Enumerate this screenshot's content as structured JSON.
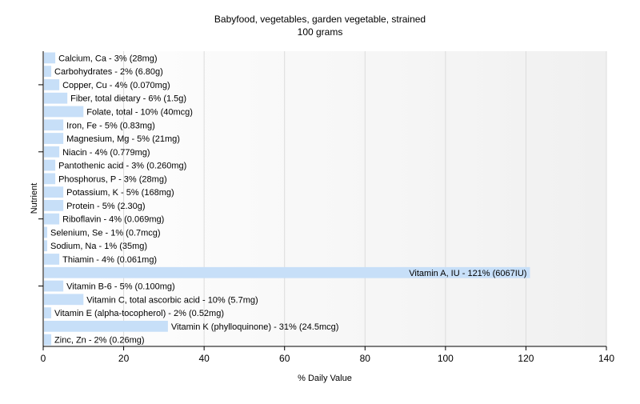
{
  "chart_data": {
    "type": "bar",
    "orientation": "horizontal",
    "title": "Babyfood, vegetables, garden vegetable, strained",
    "subtitle": "100 grams",
    "xlabel": "% Daily Value",
    "ylabel": "Nutrient",
    "xlim": [
      0,
      140
    ],
    "xticks": [
      0,
      20,
      40,
      60,
      80,
      100,
      120,
      140
    ],
    "grid": true,
    "bar_color": "#c7dff8",
    "categories": [
      "Calcium, Ca",
      "Carbohydrates",
      "Copper, Cu",
      "Fiber, total dietary",
      "Folate, total",
      "Iron, Fe",
      "Magnesium, Mg",
      "Niacin",
      "Pantothenic acid",
      "Phosphorus, P",
      "Potassium, K",
      "Protein",
      "Riboflavin",
      "Selenium, Se",
      "Sodium, Na",
      "Thiamin",
      "Vitamin A, IU",
      "Vitamin B-6",
      "Vitamin C, total ascorbic acid",
      "Vitamin E (alpha-tocopherol)",
      "Vitamin K (phylloquinone)",
      "Zinc, Zn"
    ],
    "values": [
      3,
      2,
      4,
      6,
      10,
      5,
      5,
      4,
      3,
      3,
      5,
      5,
      4,
      1,
      1,
      4,
      121,
      5,
      10,
      2,
      31,
      2
    ],
    "labels": [
      "Calcium, Ca - 3% (28mg)",
      "Carbohydrates - 2% (6.80g)",
      "Copper, Cu - 4% (0.070mg)",
      "Fiber, total dietary - 6% (1.5g)",
      "Folate, total - 10% (40mcg)",
      "Iron, Fe - 5% (0.83mg)",
      "Magnesium, Mg - 5% (21mg)",
      "Niacin - 4% (0.779mg)",
      "Pantothenic acid - 3% (0.260mg)",
      "Phosphorus, P - 3% (28mg)",
      "Potassium, K - 5% (168mg)",
      "Protein - 5% (2.30g)",
      "Riboflavin - 4% (0.069mg)",
      "Selenium, Se - 1% (0.7mcg)",
      "Sodium, Na - 1% (35mg)",
      "Thiamin - 4% (0.061mg)",
      "Vitamin A, IU - 121% (6067IU)",
      "Vitamin B-6 - 5% (0.100mg)",
      "Vitamin C, total ascorbic acid - 10% (5.7mg)",
      "Vitamin E (alpha-tocopherol) - 2% (0.52mg)",
      "Vitamin K (phylloquinone) - 31% (24.5mcg)",
      "Zinc, Zn - 2% (0.26mg)"
    ]
  }
}
